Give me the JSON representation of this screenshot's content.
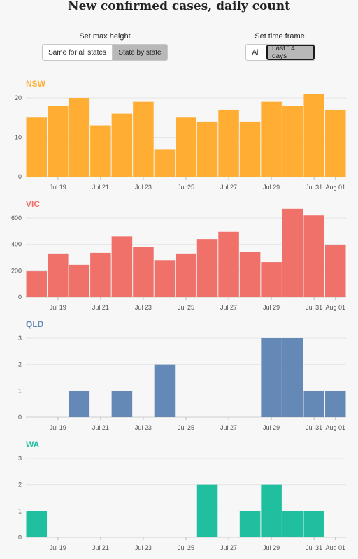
{
  "title": "New confirmed cases, daily count",
  "controls": {
    "max_height": {
      "label": "Set max height",
      "options": [
        "Same for all states",
        "State by state"
      ],
      "selected": "State by state"
    },
    "time_frame": {
      "label": "Set time frame",
      "options": [
        "All",
        "Last 14 days"
      ],
      "selected": "Last 14 days"
    }
  },
  "chart_data": [
    {
      "type": "bar",
      "title": "NSW",
      "color": "#ffae33",
      "categories": [
        "Jul 18",
        "Jul 19",
        "Jul 20",
        "Jul 21",
        "Jul 22",
        "Jul 23",
        "Jul 24",
        "Jul 25",
        "Jul 26",
        "Jul 27",
        "Jul 28",
        "Jul 29",
        "Jul 30",
        "Jul 31",
        "Aug 01"
      ],
      "values": [
        15,
        18,
        20,
        13,
        16,
        19,
        7,
        15,
        14,
        17,
        14,
        19,
        18,
        21,
        17
      ],
      "ylim": [
        0,
        20
      ],
      "yticks": [
        0,
        10,
        20
      ],
      "xtick_labels": [
        "Jul 19",
        "Jul 21",
        "Jul 23",
        "Jul 25",
        "Jul 27",
        "Jul 29",
        "Jul 31",
        "Aug 01"
      ],
      "grid": true
    },
    {
      "type": "bar",
      "title": "VIC",
      "color": "#f0706a",
      "categories": [
        "Jul 18",
        "Jul 19",
        "Jul 20",
        "Jul 21",
        "Jul 22",
        "Jul 23",
        "Jul 24",
        "Jul 25",
        "Jul 26",
        "Jul 27",
        "Jul 28",
        "Jul 29",
        "Jul 30",
        "Jul 31",
        "Aug 01"
      ],
      "values": [
        196,
        330,
        245,
        335,
        460,
        380,
        280,
        330,
        440,
        495,
        340,
        265,
        670,
        620,
        395
      ],
      "ylim": [
        0,
        600
      ],
      "yticks": [
        0,
        200,
        400,
        600
      ],
      "xtick_labels": [
        "Jul 19",
        "Jul 21",
        "Jul 23",
        "Jul 25",
        "Jul 27",
        "Jul 29",
        "Jul 31",
        "Aug 01"
      ],
      "grid": true
    },
    {
      "type": "bar",
      "title": "QLD",
      "color": "#6589b6",
      "categories": [
        "Jul 18",
        "Jul 19",
        "Jul 20",
        "Jul 21",
        "Jul 22",
        "Jul 23",
        "Jul 24",
        "Jul 25",
        "Jul 26",
        "Jul 27",
        "Jul 28",
        "Jul 29",
        "Jul 30",
        "Jul 31",
        "Aug 01"
      ],
      "values": [
        0,
        0,
        1,
        0,
        1,
        0,
        2,
        0,
        0,
        0,
        0,
        3,
        3,
        1,
        1
      ],
      "ylim": [
        0,
        3
      ],
      "yticks": [
        0,
        1,
        2,
        3
      ],
      "xtick_labels": [
        "Jul 19",
        "Jul 21",
        "Jul 23",
        "Jul 25",
        "Jul 27",
        "Jul 29",
        "Jul 31",
        "Aug 01"
      ],
      "grid": true
    },
    {
      "type": "bar",
      "title": "WA",
      "color": "#1fbfa0",
      "categories": [
        "Jul 18",
        "Jul 19",
        "Jul 20",
        "Jul 21",
        "Jul 22",
        "Jul 23",
        "Jul 24",
        "Jul 25",
        "Jul 26",
        "Jul 27",
        "Jul 28",
        "Jul 29",
        "Jul 30",
        "Jul 31",
        "Aug 01"
      ],
      "values": [
        1,
        0,
        0,
        0,
        0,
        0,
        0,
        0,
        2,
        0,
        1,
        2,
        1,
        1,
        0
      ],
      "ylim": [
        0,
        3
      ],
      "yticks": [
        0,
        1,
        2,
        3
      ],
      "xtick_labels": [
        "Jul 19",
        "Jul 21",
        "Jul 23",
        "Jul 25",
        "Jul 27",
        "Jul 29",
        "Jul 31",
        "Aug 01"
      ],
      "grid": true
    }
  ]
}
